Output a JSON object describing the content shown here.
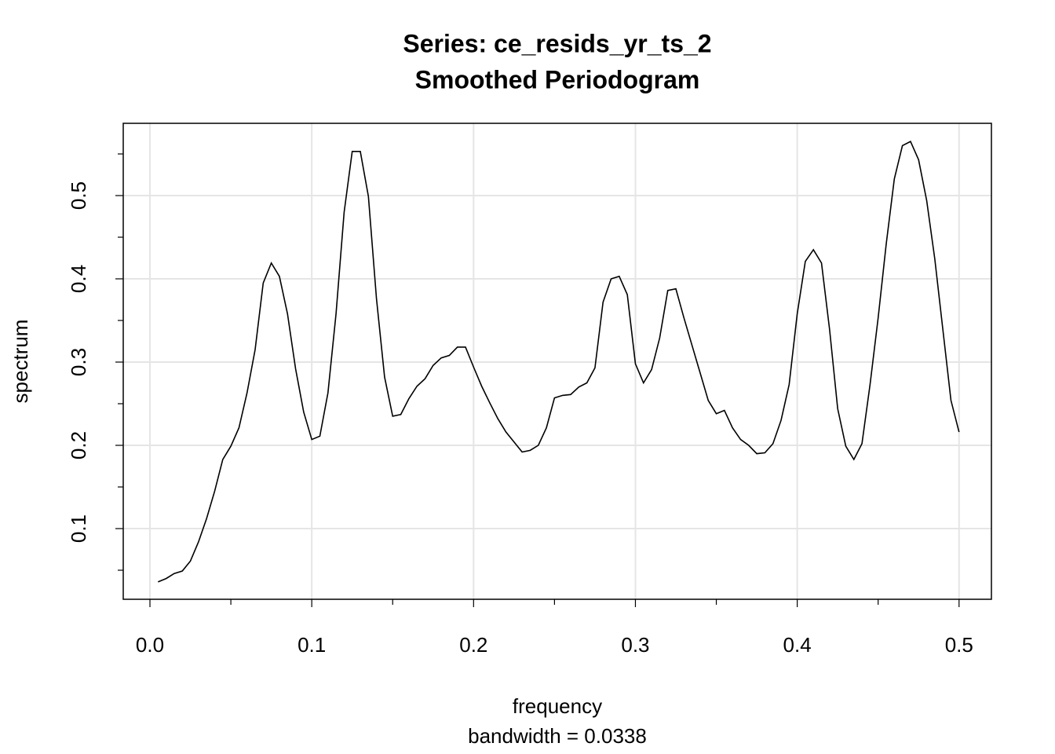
{
  "chart_data": {
    "type": "line",
    "title": "Series: ce_resids_yr_ts_2",
    "subtitle": "Smoothed Periodogram",
    "xlabel": "frequency",
    "xlabel_note": "bandwidth = 0.0338",
    "ylabel": "spectrum",
    "xlim": [
      -0.0165,
      0.52
    ],
    "ylim": [
      0.0151,
      0.5868
    ],
    "xticks": [
      {
        "value": 0,
        "label": "0.0"
      },
      0.1,
      0.2,
      0.3,
      0.4,
      0.5
    ],
    "yticks": [
      0.1,
      0.2,
      0.3,
      0.4,
      0.5
    ],
    "xminorticks": [
      0.05,
      0.15,
      0.25,
      0.35,
      0.45
    ],
    "yminorticks": [
      0.05,
      0.15,
      0.25,
      0.35,
      0.45,
      0.55
    ],
    "grid": true,
    "x": [
      0.005,
      0.01,
      0.015,
      0.02,
      0.025,
      0.03,
      0.035,
      0.04,
      0.045,
      0.05,
      0.055,
      0.06,
      0.065,
      0.07,
      0.075,
      0.08,
      0.085,
      0.09,
      0.095,
      0.1,
      0.105,
      0.11,
      0.115,
      0.12,
      0.125,
      0.13,
      0.135,
      0.14,
      0.145,
      0.15,
      0.155,
      0.16,
      0.165,
      0.17,
      0.175,
      0.18,
      0.185,
      0.19,
      0.195,
      0.2,
      0.205,
      0.21,
      0.215,
      0.22,
      0.225,
      0.23,
      0.235,
      0.24,
      0.245,
      0.25,
      0.255,
      0.26,
      0.265,
      0.27,
      0.275,
      0.28,
      0.285,
      0.29,
      0.295,
      0.3,
      0.305,
      0.31,
      0.315,
      0.32,
      0.325,
      0.33,
      0.335,
      0.34,
      0.345,
      0.35,
      0.355,
      0.36,
      0.365,
      0.37,
      0.375,
      0.38,
      0.385,
      0.39,
      0.395,
      0.4,
      0.405,
      0.41,
      0.415,
      0.42,
      0.425,
      0.43,
      0.435,
      0.44,
      0.445,
      0.45,
      0.455,
      0.46,
      0.465,
      0.47,
      0.475,
      0.48,
      0.485,
      0.49,
      0.495,
      0.5
    ],
    "series": [
      {
        "name": "spectrum",
        "color": "#000000",
        "values": [
          0.036,
          0.04,
          0.046,
          0.049,
          0.061,
          0.084,
          0.112,
          0.145,
          0.183,
          0.199,
          0.221,
          0.263,
          0.315,
          0.395,
          0.419,
          0.403,
          0.358,
          0.292,
          0.24,
          0.207,
          0.211,
          0.263,
          0.358,
          0.48,
          0.553,
          0.553,
          0.499,
          0.376,
          0.282,
          0.235,
          0.237,
          0.256,
          0.271,
          0.28,
          0.296,
          0.305,
          0.308,
          0.318,
          0.318,
          0.294,
          0.271,
          0.251,
          0.232,
          0.216,
          0.204,
          0.192,
          0.194,
          0.2,
          0.221,
          0.257,
          0.26,
          0.261,
          0.27,
          0.275,
          0.293,
          0.372,
          0.4,
          0.403,
          0.381,
          0.298,
          0.275,
          0.291,
          0.329,
          0.386,
          0.388,
          0.353,
          0.32,
          0.287,
          0.254,
          0.238,
          0.242,
          0.221,
          0.207,
          0.2,
          0.19,
          0.191,
          0.202,
          0.23,
          0.273,
          0.358,
          0.421,
          0.435,
          0.419,
          0.339,
          0.244,
          0.199,
          0.183,
          0.202,
          0.273,
          0.353,
          0.442,
          0.52,
          0.56,
          0.565,
          0.543,
          0.494,
          0.424,
          0.339,
          0.254,
          0.216
        ]
      }
    ]
  }
}
